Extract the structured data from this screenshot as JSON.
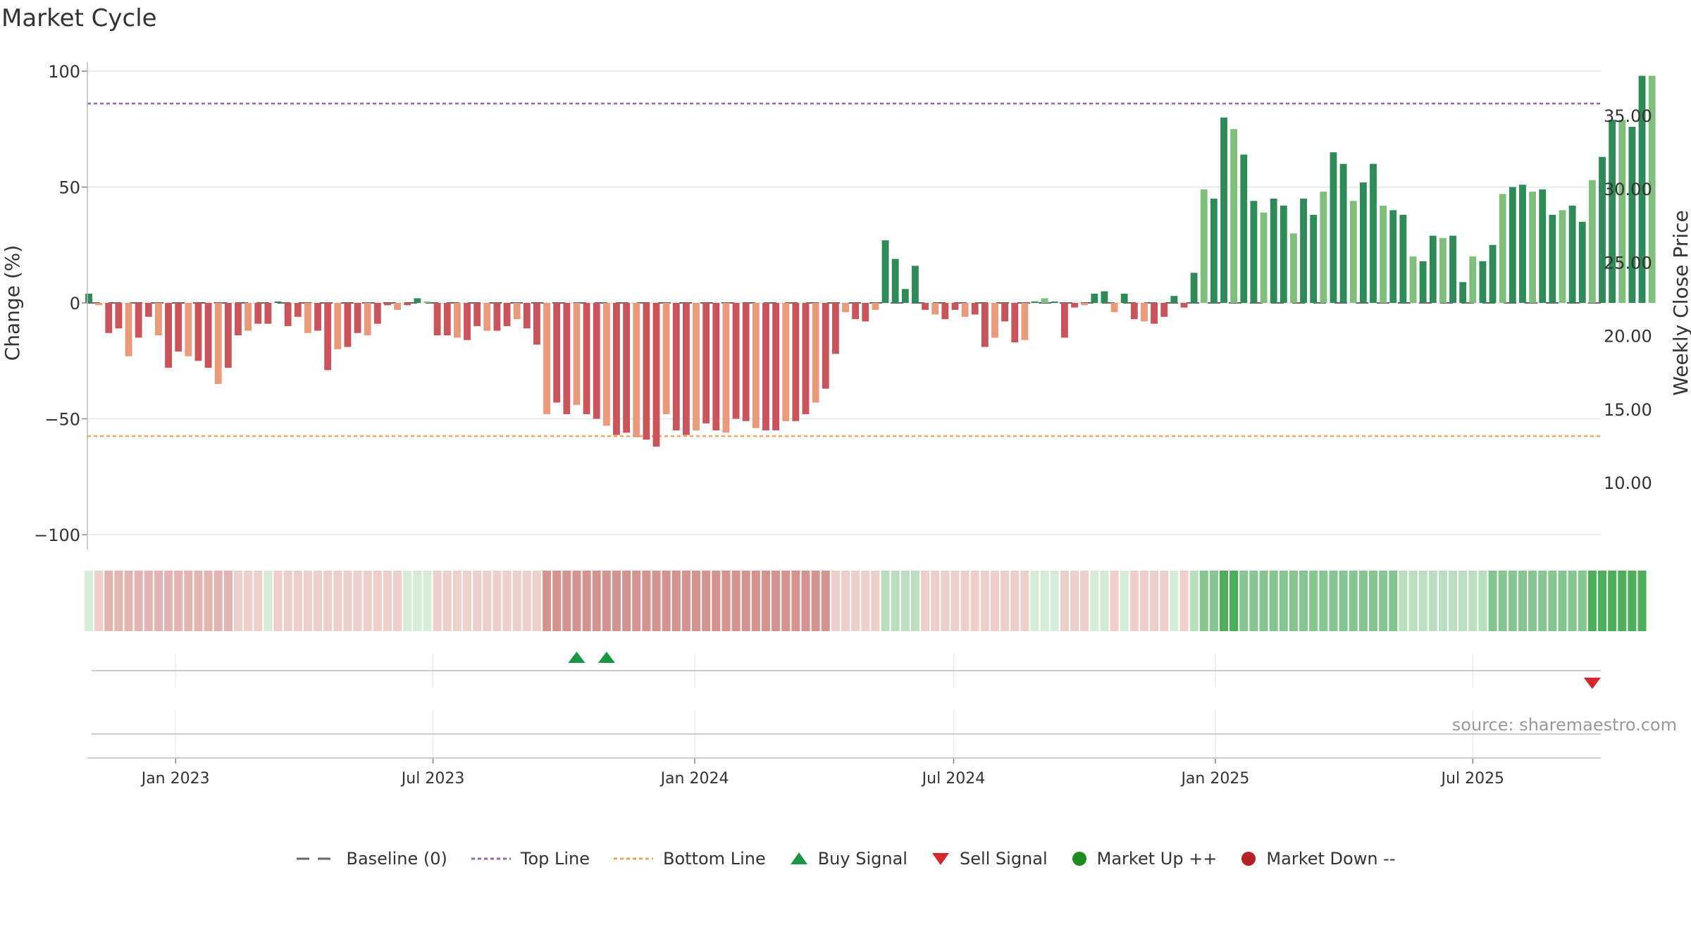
{
  "title": "Market Cycle",
  "source": "source: sharemaestro.com",
  "legend": [
    {
      "key": "baseline",
      "label": "Baseline (0)",
      "color": "#666666"
    },
    {
      "key": "top",
      "label": "Top Line",
      "color": "#9467bd"
    },
    {
      "key": "bottom",
      "label": "Bottom Line",
      "color": "#f4a460"
    },
    {
      "key": "buy",
      "label": "Buy Signal",
      "color": "#1a9641"
    },
    {
      "key": "sell",
      "label": "Sell Signal",
      "color": "#d62728"
    },
    {
      "key": "up",
      "label": "Market Up ++",
      "color": "#1e8b1e"
    },
    {
      "key": "down",
      "label": "Market Down --",
      "color": "#b22222"
    }
  ],
  "chart_data": {
    "type": "bar",
    "ylabel": "Change (%)",
    "y2label": "Weekly Close Price",
    "ylim": [
      -100,
      100
    ],
    "yticks": [
      100,
      50,
      0,
      -50,
      -100
    ],
    "y2lim": [
      5,
      38.3
    ],
    "y2ticks": [
      35,
      30,
      25,
      20,
      15,
      10
    ],
    "top_line": 86,
    "bottom_line": -57.5,
    "x_start": "2022-10-31",
    "x_end": "2025-09-29",
    "xticks": [
      {
        "date": "2023-01-01",
        "label": "Jan 2023"
      },
      {
        "date": "2023-07-01",
        "label": "Jul 2023"
      },
      {
        "date": "2024-01-01",
        "label": "Jan 2024"
      },
      {
        "date": "2024-07-01",
        "label": "Jul 2024"
      },
      {
        "date": "2025-01-01",
        "label": "Jan 2025"
      },
      {
        "date": "2025-07-01",
        "label": "Jul 2025"
      }
    ],
    "series": [
      {
        "start_date": "2022-11-01",
        "interval_days": 7,
        "values": [
          4,
          -1,
          -13,
          -11,
          -23,
          -15,
          -6,
          -14,
          -28,
          -21,
          -23,
          -25,
          -28,
          -35,
          -28,
          -14,
          -12,
          -9,
          -9,
          0,
          -10,
          -6,
          -13,
          -12,
          -29,
          -20,
          -19,
          -13,
          -14,
          -9,
          -1,
          -3,
          -1,
          2,
          0,
          -14,
          -14,
          -15,
          -16,
          -10,
          -12,
          -12,
          -10,
          -7,
          -11,
          -18,
          -48,
          -43,
          -48,
          -44,
          -48,
          -50,
          -53,
          -57,
          -56,
          -58,
          -59,
          -62,
          -48,
          -55,
          -57,
          -55,
          -52,
          -55,
          -56,
          -50,
          -51,
          -54,
          -55,
          -55,
          -51,
          -51,
          -48,
          -43,
          -37,
          -22,
          -4,
          -7,
          -8,
          -3,
          27,
          19,
          6,
          16,
          -3,
          -5,
          -7,
          -3,
          -6,
          -5,
          -19,
          -15,
          -8,
          -17,
          -16,
          0,
          2,
          0,
          -15,
          -2,
          -1,
          4,
          5,
          -4,
          4,
          -7,
          -8,
          -9,
          -6,
          3,
          -2,
          13,
          49,
          45,
          80,
          75,
          64,
          44,
          39,
          45,
          42,
          30,
          45,
          38,
          48,
          65,
          60,
          44,
          52,
          60,
          42,
          40,
          38,
          20,
          18,
          29,
          28,
          29,
          9,
          20,
          18,
          25,
          47,
          50,
          51,
          48,
          49,
          38,
          40,
          42,
          35,
          53,
          63,
          79,
          79,
          76,
          98,
          98
        ]
      }
    ],
    "intensity_band": {
      "start_date": "2022-11-01",
      "interval_days": 7,
      "values": [
        1,
        -1,
        -2,
        -2,
        -2,
        -2,
        -2,
        -2,
        -2,
        -2,
        -2,
        -2,
        -2,
        -2,
        -2,
        -1,
        -1,
        -1,
        1,
        -1,
        -1,
        -1,
        -1,
        -1,
        -1,
        -1,
        -1,
        -1,
        -1,
        -1,
        -1,
        -1,
        1,
        1,
        1,
        -1,
        -1,
        -1,
        -1,
        -1,
        -1,
        -1,
        -1,
        -1,
        -1,
        -1,
        -3,
        -3,
        -3,
        -3,
        -3,
        -3,
        -3,
        -3,
        -3,
        -3,
        -3,
        -3,
        -3,
        -3,
        -3,
        -3,
        -3,
        -3,
        -3,
        -3,
        -3,
        -3,
        -3,
        -3,
        -3,
        -3,
        -3,
        -3,
        -3,
        -1,
        -1,
        -1,
        -1,
        -1,
        2,
        2,
        2,
        2,
        -1,
        -1,
        -1,
        -1,
        -1,
        -1,
        -1,
        -1,
        -1,
        -1,
        -1,
        1,
        1,
        1,
        -1,
        -1,
        -1,
        1,
        1,
        -1,
        1,
        -1,
        -1,
        -1,
        -1,
        1,
        -1,
        2,
        3,
        3,
        4,
        4,
        3,
        3,
        3,
        3,
        3,
        3,
        3,
        3,
        3,
        3,
        3,
        3,
        3,
        3,
        3,
        3,
        2,
        2,
        2,
        2,
        2,
        2,
        2,
        2,
        2,
        3,
        3,
        3,
        3,
        3,
        3,
        3,
        3,
        3,
        3,
        4,
        4,
        4,
        4,
        4,
        4
      ]
    },
    "buy_signals": [
      "2023-10-10",
      "2023-10-31"
    ],
    "sell_signals": [
      "2025-09-23"
    ],
    "market_up": [],
    "market_down": []
  }
}
